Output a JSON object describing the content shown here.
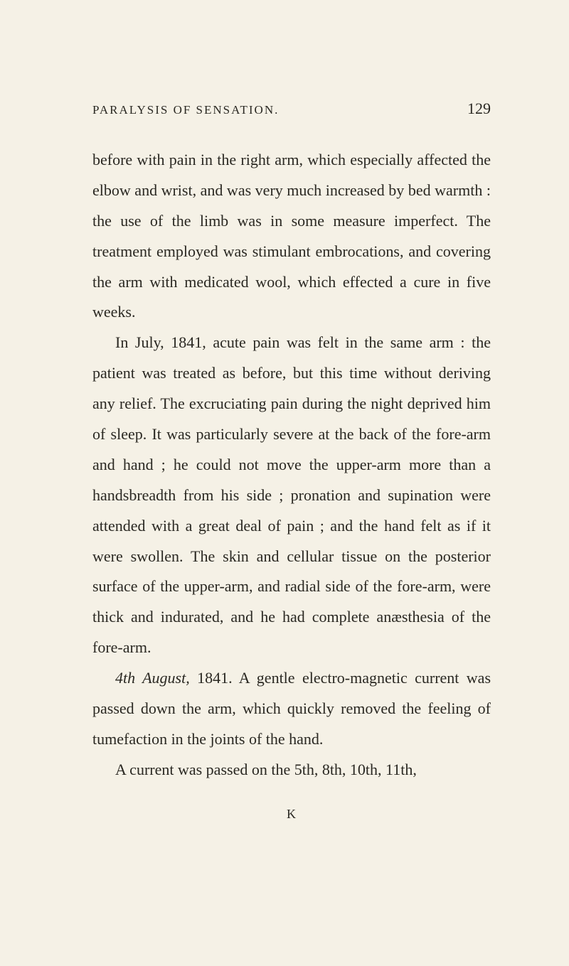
{
  "header": {
    "running_title": "PARALYSIS OF SENSATION.",
    "page_number": "129"
  },
  "body": {
    "para1": "before with pain in the right arm, which especially affected the elbow and wrist, and was very much increased by bed warmth : the use of the limb was in some measure imperfect. The treatment employed was stimulant embrocations, and covering the arm with medicated wool, which effected a cure in five weeks.",
    "para2": "In July, 1841, acute pain was felt in the same arm : the patient was treated as before, but this time without deriving any relief. The excruciating pain during the night deprived him of sleep. It was particularly severe at the back of the fore-arm and hand ; he could not move the upper-arm more than a handsbreadth from his side ; pronation and supination were attended with a great deal of pain ; and the hand felt as if it were swollen. The skin and cellular tissue on the posterior surface of the upper-arm, and radial side of the fore-arm, were thick and indurated, and he had complete anæsthesia of the fore-arm.",
    "para3_italic": "4th August,",
    "para3_rest": " 1841. A gentle electro-magnetic current was passed down the arm, which quickly removed the feeling of tumefaction in the joints of the hand.",
    "para4": "A current was passed on the 5th, 8th, 10th, 11th,"
  },
  "signature": "K",
  "style": {
    "background_color": "#f5f1e6",
    "text_color": "#2a2822",
    "body_fontsize": 22,
    "header_fontsize": 17,
    "pagenum_fontsize": 22,
    "line_height": 1.95
  }
}
